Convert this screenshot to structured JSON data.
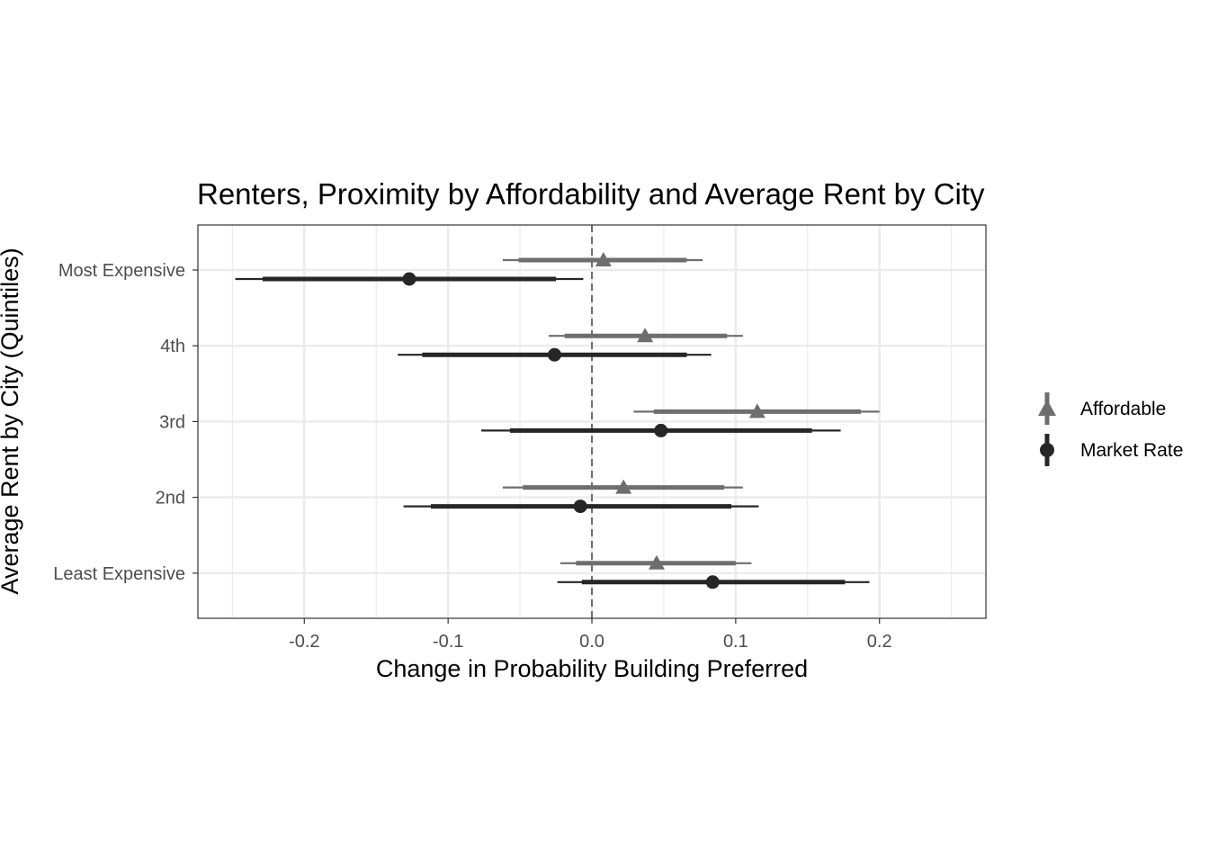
{
  "chart_data": {
    "type": "dot-interval",
    "title": "Renters, Proximity by Affordability and Average Rent by City",
    "xlabel": "Change in Probability Building Preferred",
    "ylabel": "Average Rent by City (Quintiles)",
    "xlim": [
      -0.274,
      0.274
    ],
    "x_ticks": [
      -0.2,
      -0.1,
      0.0,
      0.1,
      0.2
    ],
    "x_tick_labels": [
      "-0.2",
      "-0.1",
      "0.0",
      "0.1",
      "0.2"
    ],
    "categories": [
      "Most Expensive",
      "4th",
      "3rd",
      "2nd",
      "Least Expensive"
    ],
    "reference_line": 0.0,
    "grid": true,
    "legend_position": "right",
    "series": [
      {
        "name": "Affordable",
        "marker": "triangle",
        "color": "#6e6e6e",
        "estimates": [
          0.008,
          0.037,
          0.115,
          0.022,
          0.045
        ],
        "inner_ci": [
          [
            -0.051,
            0.066
          ],
          [
            -0.019,
            0.094
          ],
          [
            0.043,
            0.187
          ],
          [
            -0.048,
            0.092
          ],
          [
            -0.011,
            0.1
          ]
        ],
        "outer_ci": [
          [
            -0.062,
            0.077
          ],
          [
            -0.03,
            0.105
          ],
          [
            0.029,
            0.2
          ],
          [
            -0.062,
            0.105
          ],
          [
            -0.022,
            0.111
          ]
        ]
      },
      {
        "name": "Market Rate",
        "marker": "circle",
        "color": "#262626",
        "estimates": [
          -0.127,
          -0.026,
          0.048,
          -0.008,
          0.084
        ],
        "inner_ci": [
          [
            -0.229,
            -0.025
          ],
          [
            -0.118,
            0.066
          ],
          [
            -0.057,
            0.153
          ],
          [
            -0.112,
            0.097
          ],
          [
            -0.007,
            0.176
          ]
        ],
        "outer_ci": [
          [
            -0.248,
            -0.006
          ],
          [
            -0.135,
            0.083
          ],
          [
            -0.077,
            0.173
          ],
          [
            -0.131,
            0.116
          ],
          [
            -0.024,
            0.193
          ]
        ]
      }
    ]
  }
}
